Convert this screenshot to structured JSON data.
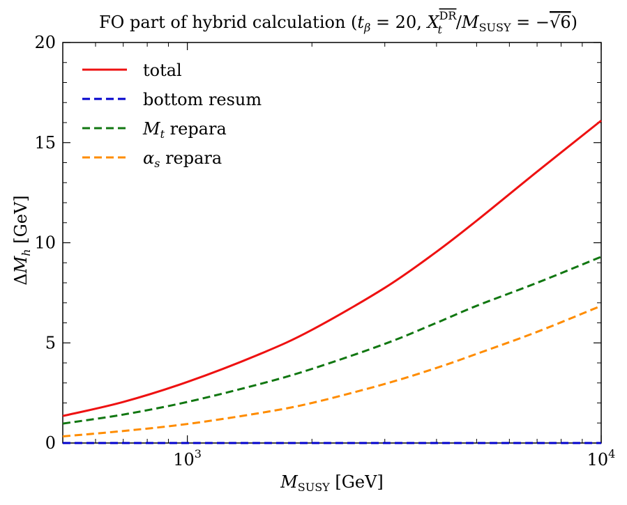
{
  "chart_data": {
    "type": "line",
    "title_parts": {
      "prefix": "FO part of hybrid calculation (",
      "t": "t",
      "beta": "β",
      "eq1": " = 20, ",
      "X": "X",
      "X_sub": "t",
      "X_sup": "DR",
      "slash": "/",
      "M": "M",
      "M_sub": "SUSY",
      "eq2": " = −",
      "sqrt_sign": "√",
      "sqrt_arg": "6",
      "suffix": ")"
    },
    "xlabel_parts": {
      "M": "M",
      "sub": "SUSY",
      "unit": " [GeV]"
    },
    "ylabel_parts": {
      "delta": "Δ",
      "M": "M",
      "sub": "h",
      "unit": " [GeV]"
    },
    "x_scale": "log",
    "xlim": [
      500,
      10000
    ],
    "ylim": [
      0,
      20
    ],
    "x_major_ticks": [
      {
        "value": 1000,
        "base": "10",
        "exp": "3"
      },
      {
        "value": 10000,
        "base": "10",
        "exp": "4"
      }
    ],
    "x_minor_ticks": [
      500,
      600,
      700,
      800,
      900,
      2000,
      3000,
      4000,
      5000,
      6000,
      7000,
      8000,
      9000
    ],
    "y_major_ticks": [
      0,
      5,
      10,
      15,
      20
    ],
    "y_minor_ticks": [
      1,
      2,
      3,
      4,
      6,
      7,
      8,
      9,
      11,
      12,
      13,
      14,
      16,
      17,
      18,
      19
    ],
    "legend_position": "top-left",
    "series": [
      {
        "name": "total",
        "label_parts": [
          "total"
        ],
        "color": "#ee1111",
        "dash": "solid",
        "x": [
          500,
          700,
          1000,
          1500,
          2000,
          3000,
          4000,
          5000,
          7000,
          10000
        ],
        "y": [
          1.35,
          2.05,
          3.05,
          4.45,
          5.65,
          7.75,
          9.55,
          11.1,
          13.55,
          16.1
        ]
      },
      {
        "name": "bottom resum",
        "label_parts": [
          "bottom resum"
        ],
        "color": "#0000cc",
        "dash": "dashed",
        "x": [
          500,
          1000,
          10000
        ],
        "y": [
          0.0,
          0.0,
          0.0
        ]
      },
      {
        "name": "Mt repara",
        "label_parts": [
          "M",
          "t",
          " repara"
        ],
        "color": "#117711",
        "dash": "dashed",
        "x": [
          500,
          700,
          1000,
          1500,
          2000,
          3000,
          4000,
          5000,
          7000,
          10000
        ],
        "y": [
          0.97,
          1.42,
          2.05,
          2.95,
          3.7,
          4.95,
          6.0,
          6.85,
          8.0,
          9.3
        ]
      },
      {
        "name": "alpha_s repara",
        "label_parts": [
          "α",
          "s",
          " repara"
        ],
        "color": "#ff8c00",
        "dash": "dashed",
        "x": [
          500,
          700,
          1000,
          1500,
          2000,
          3000,
          4000,
          5000,
          7000,
          10000
        ],
        "y": [
          0.33,
          0.6,
          0.95,
          1.5,
          2.0,
          2.95,
          3.75,
          4.45,
          5.55,
          6.85
        ]
      }
    ]
  }
}
